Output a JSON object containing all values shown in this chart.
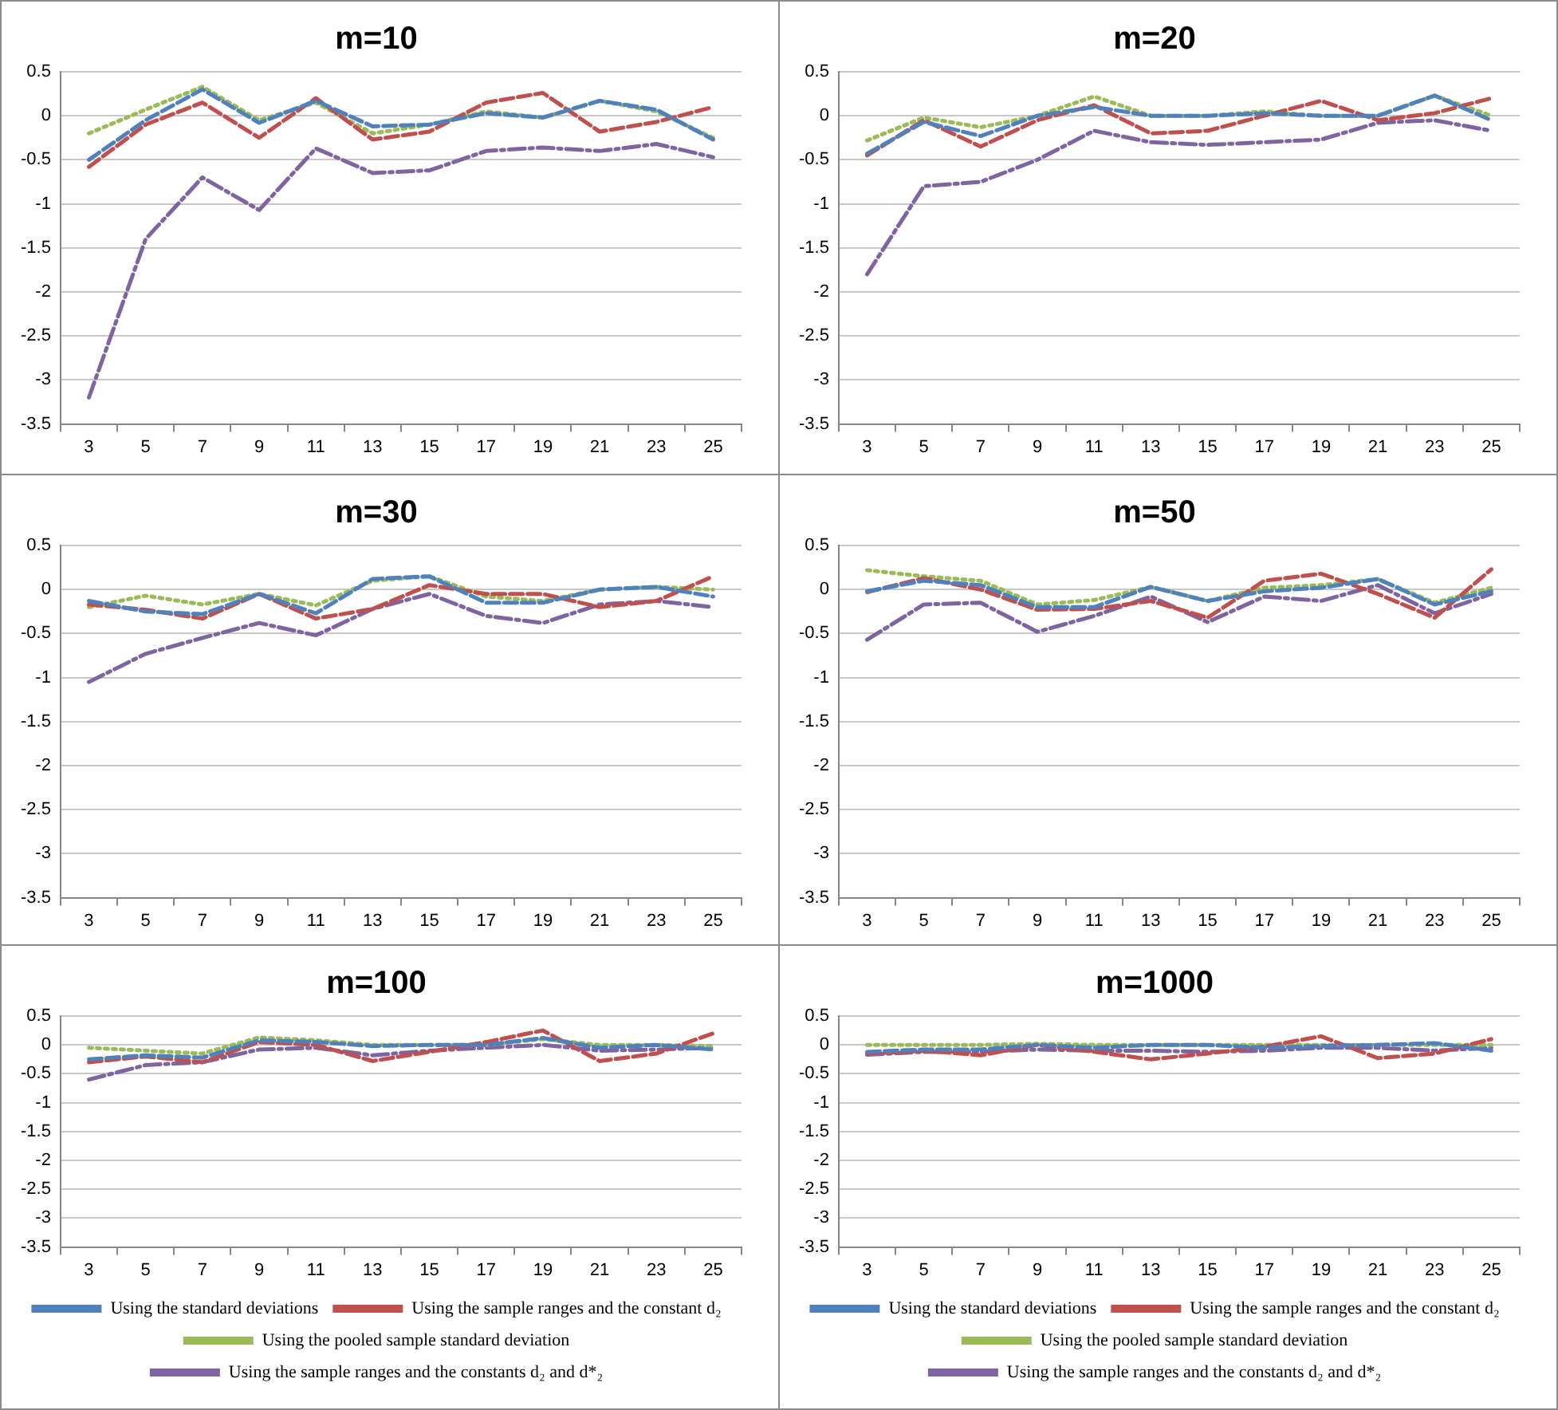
{
  "chart_data": [
    {
      "type": "line",
      "title": "m=10",
      "categories": [
        "3",
        "5",
        "7",
        "9",
        "11",
        "13",
        "15",
        "17",
        "19",
        "21",
        "23",
        "25"
      ],
      "ylim": [
        -3.5,
        0.5
      ],
      "yticks": [
        -3.5,
        -3,
        -2.5,
        -2,
        -1.5,
        -1,
        -0.5,
        0,
        0.5
      ],
      "grid": "y",
      "legend": false,
      "marker": "none",
      "series": [
        {
          "color": "#4f81bd",
          "line_style": "dashed",
          "values": [
            -0.5,
            -0.05,
            0.3,
            -0.08,
            0.17,
            -0.12,
            -0.1,
            0.03,
            -0.02,
            0.17,
            0.07,
            -0.27
          ]
        },
        {
          "color": "#c0504d",
          "line_style": "dashed",
          "values": [
            -0.58,
            -0.1,
            0.15,
            -0.25,
            0.2,
            -0.27,
            -0.18,
            0.15,
            0.26,
            -0.18,
            -0.07,
            0.1
          ]
        },
        {
          "color": "#9bbb59",
          "line_style": "dotted",
          "values": [
            -0.2,
            0.07,
            0.33,
            -0.05,
            0.15,
            -0.2,
            -0.1,
            0.05,
            -0.02,
            0.17,
            0.05,
            -0.25
          ]
        },
        {
          "color": "#8064a2",
          "line_style": "dashdot",
          "values": [
            -3.2,
            -1.4,
            -0.7,
            -1.07,
            -0.37,
            -0.65,
            -0.62,
            -0.4,
            -0.36,
            -0.4,
            -0.32,
            -0.47
          ]
        }
      ]
    },
    {
      "type": "line",
      "title": "m=20",
      "categories": [
        "3",
        "5",
        "7",
        "9",
        "11",
        "13",
        "15",
        "17",
        "19",
        "21",
        "23",
        "25"
      ],
      "ylim": [
        -3.5,
        0.5
      ],
      "yticks": [
        -3.5,
        -3,
        -2.5,
        -2,
        -1.5,
        -1,
        -0.5,
        0,
        0.5
      ],
      "grid": "y",
      "legend": false,
      "marker": "none",
      "series": [
        {
          "color": "#4f81bd",
          "line_style": "dashed",
          "values": [
            -0.43,
            -0.07,
            -0.23,
            0.0,
            0.1,
            0.0,
            0.0,
            0.03,
            0.0,
            0.0,
            0.23,
            -0.05
          ]
        },
        {
          "color": "#c0504d",
          "line_style": "dashed",
          "values": [
            -0.45,
            -0.05,
            -0.35,
            -0.05,
            0.12,
            -0.2,
            -0.17,
            0.0,
            0.17,
            -0.05,
            0.03,
            0.2
          ]
        },
        {
          "color": "#9bbb59",
          "line_style": "dotted",
          "values": [
            -0.28,
            -0.02,
            -0.13,
            0.0,
            0.22,
            0.0,
            0.0,
            0.05,
            0.0,
            0.0,
            0.23,
            0.0
          ]
        },
        {
          "color": "#8064a2",
          "line_style": "dashdot",
          "values": [
            -1.8,
            -0.8,
            -0.75,
            -0.5,
            -0.17,
            -0.3,
            -0.33,
            -0.3,
            -0.27,
            -0.08,
            -0.05,
            -0.17
          ]
        }
      ]
    },
    {
      "type": "line",
      "title": "m=30",
      "categories": [
        "3",
        "5",
        "7",
        "9",
        "11",
        "13",
        "15",
        "17",
        "19",
        "21",
        "23",
        "25"
      ],
      "ylim": [
        -3.5,
        0.5
      ],
      "yticks": [
        -3.5,
        -3,
        -2.5,
        -2,
        -1.5,
        -1,
        -0.5,
        0,
        0.5
      ],
      "grid": "y",
      "legend": false,
      "marker": "none",
      "series": [
        {
          "color": "#4f81bd",
          "line_style": "dashed",
          "values": [
            -0.13,
            -0.25,
            -0.28,
            -0.05,
            -0.27,
            0.12,
            0.15,
            -0.15,
            -0.15,
            0.0,
            0.03,
            -0.08
          ]
        },
        {
          "color": "#c0504d",
          "line_style": "dashed",
          "values": [
            -0.17,
            -0.23,
            -0.33,
            -0.05,
            -0.33,
            -0.22,
            0.05,
            -0.05,
            -0.05,
            -0.2,
            -0.13,
            0.15
          ]
        },
        {
          "color": "#9bbb59",
          "line_style": "dotted",
          "values": [
            -0.2,
            -0.07,
            -0.17,
            -0.05,
            -0.18,
            0.1,
            0.15,
            -0.08,
            -0.13,
            0.0,
            0.03,
            0.0
          ]
        },
        {
          "color": "#8064a2",
          "line_style": "dashdot",
          "values": [
            -1.05,
            -0.73,
            -0.55,
            -0.38,
            -0.52,
            -0.22,
            -0.05,
            -0.3,
            -0.38,
            -0.17,
            -0.13,
            -0.2
          ]
        }
      ]
    },
    {
      "type": "line",
      "title": "m=50",
      "categories": [
        "3",
        "5",
        "7",
        "9",
        "11",
        "13",
        "15",
        "17",
        "19",
        "21",
        "23",
        "25"
      ],
      "ylim": [
        -3.5,
        0.5
      ],
      "yticks": [
        -3.5,
        -3,
        -2.5,
        -2,
        -1.5,
        -1,
        -0.5,
        0,
        0.5
      ],
      "grid": "y",
      "legend": false,
      "marker": "none",
      "series": [
        {
          "color": "#4f81bd",
          "line_style": "dashed",
          "values": [
            -0.02,
            0.1,
            0.05,
            -0.2,
            -0.2,
            0.03,
            -0.13,
            -0.02,
            0.02,
            0.12,
            -0.17,
            -0.02
          ]
        },
        {
          "color": "#c0504d",
          "line_style": "dashed",
          "values": [
            -0.03,
            0.13,
            0.0,
            -0.23,
            -0.22,
            -0.13,
            -0.32,
            0.1,
            0.18,
            -0.05,
            -0.32,
            0.23
          ]
        },
        {
          "color": "#9bbb59",
          "line_style": "dotted",
          "values": [
            0.22,
            0.15,
            0.1,
            -0.17,
            -0.12,
            0.03,
            -0.13,
            0.02,
            0.05,
            0.12,
            -0.15,
            0.02
          ]
        },
        {
          "color": "#8064a2",
          "line_style": "dashdot",
          "values": [
            -0.57,
            -0.17,
            -0.15,
            -0.48,
            -0.3,
            -0.08,
            -0.37,
            -0.08,
            -0.13,
            0.05,
            -0.27,
            -0.05
          ]
        }
      ]
    },
    {
      "type": "line",
      "title": "m=100",
      "categories": [
        "3",
        "5",
        "7",
        "9",
        "11",
        "13",
        "15",
        "17",
        "19",
        "21",
        "23",
        "25"
      ],
      "ylim": [
        -3.5,
        0.5
      ],
      "yticks": [
        -3.5,
        -3,
        -2.5,
        -2,
        -1.5,
        -1,
        -0.5,
        0,
        0.5
      ],
      "grid": "y",
      "legend": "bottom",
      "marker": "none",
      "series": [
        {
          "name": "Using the standard deviations",
          "color": "#4f81bd",
          "line_style": "dashed",
          "values": [
            -0.25,
            -0.18,
            -0.22,
            0.08,
            0.05,
            -0.02,
            0.0,
            0.0,
            0.12,
            -0.05,
            0.0,
            -0.08
          ]
        },
        {
          "name": "Using the sample ranges and the constant d₂",
          "color": "#c0504d",
          "line_style": "dashed",
          "values": [
            -0.3,
            -0.2,
            -0.3,
            0.05,
            0.0,
            -0.28,
            -0.12,
            0.05,
            0.25,
            -0.28,
            -0.15,
            0.2
          ]
        },
        {
          "name": "Using the pooled sample standard deviation",
          "color": "#9bbb59",
          "line_style": "dotted",
          "values": [
            -0.05,
            -0.1,
            -0.15,
            0.13,
            0.08,
            0.0,
            0.0,
            0.0,
            0.1,
            0.0,
            0.0,
            -0.02
          ]
        },
        {
          "name": "Using the sample ranges and the constants d₂ and d*₂",
          "color": "#8064a2",
          "line_style": "dashdot",
          "values": [
            -0.6,
            -0.35,
            -0.3,
            -0.08,
            -0.05,
            -0.18,
            -0.1,
            -0.05,
            0.0,
            -0.1,
            -0.08,
            -0.05
          ]
        }
      ]
    },
    {
      "type": "line",
      "title": "m=1000",
      "categories": [
        "3",
        "5",
        "7",
        "9",
        "11",
        "13",
        "15",
        "17",
        "19",
        "21",
        "23",
        "25"
      ],
      "ylim": [
        -3.5,
        0.5
      ],
      "yticks": [
        -3.5,
        -3,
        -2.5,
        -2,
        -1.5,
        -1,
        -0.5,
        0,
        0.5
      ],
      "grid": "y",
      "legend": "bottom",
      "marker": "none",
      "series": [
        {
          "name": "Using the standard deviations",
          "color": "#4f81bd",
          "line_style": "dashed",
          "values": [
            -0.12,
            -0.08,
            -0.08,
            0.0,
            -0.05,
            0.0,
            0.0,
            -0.05,
            -0.02,
            0.0,
            0.03,
            -0.1
          ]
        },
        {
          "name": "Using the sample ranges and the constant d₂",
          "color": "#c0504d",
          "line_style": "dashed",
          "values": [
            -0.15,
            -0.1,
            -0.18,
            0.0,
            -0.12,
            -0.25,
            -0.15,
            -0.03,
            0.15,
            -0.23,
            -0.15,
            0.1
          ]
        },
        {
          "name": "Using the pooled sample standard deviation",
          "color": "#9bbb59",
          "line_style": "dotted",
          "values": [
            0.0,
            0.0,
            0.0,
            0.02,
            0.0,
            0.0,
            0.0,
            0.0,
            0.0,
            0.0,
            0.0,
            0.0
          ]
        },
        {
          "name": "Using the sample ranges and the constants d₂ and d*₂",
          "color": "#8064a2",
          "line_style": "dashdot",
          "values": [
            -0.17,
            -0.12,
            -0.12,
            -0.08,
            -0.1,
            -0.1,
            -0.12,
            -0.1,
            -0.05,
            -0.05,
            -0.1,
            -0.05
          ]
        }
      ]
    }
  ]
}
